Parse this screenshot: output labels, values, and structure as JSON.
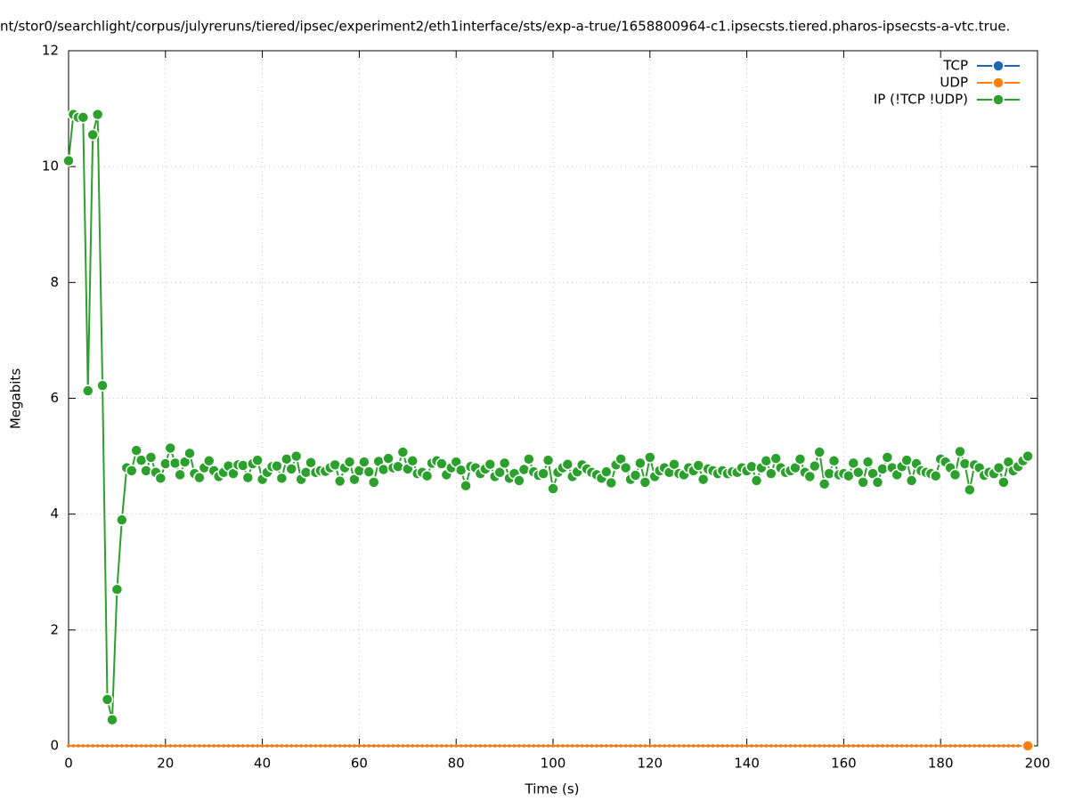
{
  "chart_data": {
    "type": "line",
    "title": "nt/stor0/searchlight/corpus/julyreruns/tiered/ipsec/experiment2/eth1interface/sts/exp-a-true/1658800964-c1.ipsecsts.tiered.pharos-ipsecsts-a-vtc.true.",
    "x_label": "Time (s)",
    "y_label": "Megabits",
    "xlim": [
      0,
      200
    ],
    "xticks": [
      0,
      20,
      40,
      60,
      80,
      100,
      120,
      140,
      160,
      180,
      200
    ],
    "ylim": [
      0,
      12
    ],
    "yticks": [
      0,
      2,
      4,
      6,
      8,
      10,
      12
    ],
    "grid": true,
    "legend": "top-right",
    "x": [
      0,
      1,
      2,
      3,
      4,
      5,
      6,
      7,
      8,
      9,
      10,
      11,
      12,
      13,
      14,
      15,
      16,
      17,
      18,
      19,
      20,
      21,
      22,
      23,
      24,
      25,
      26,
      27,
      28,
      29,
      30,
      31,
      32,
      33,
      34,
      35,
      36,
      37,
      38,
      39,
      40,
      41,
      42,
      43,
      44,
      45,
      46,
      47,
      48,
      49,
      50,
      51,
      52,
      53,
      54,
      55,
      56,
      57,
      58,
      59,
      60,
      61,
      62,
      63,
      64,
      65,
      66,
      67,
      68,
      69,
      70,
      71,
      72,
      73,
      74,
      75,
      76,
      77,
      78,
      79,
      80,
      81,
      82,
      83,
      84,
      85,
      86,
      87,
      88,
      89,
      90,
      91,
      92,
      93,
      94,
      95,
      96,
      97,
      98,
      99,
      100,
      101,
      102,
      103,
      104,
      105,
      106,
      107,
      108,
      109,
      110,
      111,
      112,
      113,
      114,
      115,
      116,
      117,
      118,
      119,
      120,
      121,
      122,
      123,
      124,
      125,
      126,
      127,
      128,
      129,
      130,
      131,
      132,
      133,
      134,
      135,
      136,
      137,
      138,
      139,
      140,
      141,
      142,
      143,
      144,
      145,
      146,
      147,
      148,
      149,
      150,
      151,
      152,
      153,
      154,
      155,
      156,
      157,
      158,
      159,
      160,
      161,
      162,
      163,
      164,
      165,
      166,
      167,
      168,
      169,
      170,
      171,
      172,
      173,
      174,
      175,
      176,
      177,
      178,
      179,
      180,
      181,
      182,
      183,
      184,
      185,
      186,
      187,
      188,
      189,
      190,
      191,
      192,
      193,
      194,
      195,
      196,
      197,
      198
    ],
    "series": [
      {
        "name": "TCP",
        "color": "#1f66b0",
        "values": [
          0,
          0,
          0,
          0,
          0,
          0,
          0,
          0,
          0,
          0,
          0,
          0,
          0,
          0,
          0,
          0,
          0,
          0,
          0,
          0,
          0,
          0,
          0,
          0,
          0,
          0,
          0,
          0,
          0,
          0,
          0,
          0,
          0,
          0,
          0,
          0,
          0,
          0,
          0,
          0,
          0,
          0,
          0,
          0,
          0,
          0,
          0,
          0,
          0,
          0,
          0,
          0,
          0,
          0,
          0,
          0,
          0,
          0,
          0,
          0,
          0,
          0,
          0,
          0,
          0,
          0,
          0,
          0,
          0,
          0,
          0,
          0,
          0,
          0,
          0,
          0,
          0,
          0,
          0,
          0,
          0,
          0,
          0,
          0,
          0,
          0,
          0,
          0,
          0,
          0,
          0,
          0,
          0,
          0,
          0,
          0,
          0,
          0,
          0,
          0,
          0,
          0,
          0,
          0,
          0,
          0,
          0,
          0,
          0,
          0,
          0,
          0,
          0,
          0,
          0,
          0,
          0,
          0,
          0,
          0,
          0,
          0,
          0,
          0,
          0,
          0,
          0,
          0,
          0,
          0,
          0,
          0,
          0,
          0,
          0,
          0,
          0,
          0,
          0,
          0,
          0,
          0,
          0,
          0,
          0,
          0,
          0,
          0,
          0,
          0,
          0,
          0,
          0,
          0,
          0,
          0,
          0,
          0,
          0,
          0,
          0,
          0,
          0,
          0,
          0,
          0,
          0,
          0,
          0,
          0,
          0,
          0,
          0,
          0,
          0,
          0,
          0,
          0,
          0,
          0,
          0,
          0,
          0,
          0,
          0,
          0,
          0,
          0,
          0,
          0,
          0,
          0,
          0,
          0,
          0,
          0,
          0,
          0,
          0
        ]
      },
      {
        "name": "UDP",
        "color": "#ff7f0e",
        "values": [
          0,
          0,
          0,
          0,
          0,
          0,
          0,
          0,
          0,
          0,
          0,
          0,
          0,
          0,
          0,
          0,
          0,
          0,
          0,
          0,
          0,
          0,
          0,
          0,
          0,
          0,
          0,
          0,
          0,
          0,
          0,
          0,
          0,
          0,
          0,
          0,
          0,
          0,
          0,
          0,
          0,
          0,
          0,
          0,
          0,
          0,
          0,
          0,
          0,
          0,
          0,
          0,
          0,
          0,
          0,
          0,
          0,
          0,
          0,
          0,
          0,
          0,
          0,
          0,
          0,
          0,
          0,
          0,
          0,
          0,
          0,
          0,
          0,
          0,
          0,
          0,
          0,
          0,
          0,
          0,
          0,
          0,
          0,
          0,
          0,
          0,
          0,
          0,
          0,
          0,
          0,
          0,
          0,
          0,
          0,
          0,
          0,
          0,
          0,
          0,
          0,
          0,
          0,
          0,
          0,
          0,
          0,
          0,
          0,
          0,
          0,
          0,
          0,
          0,
          0,
          0,
          0,
          0,
          0,
          0,
          0,
          0,
          0,
          0,
          0,
          0,
          0,
          0,
          0,
          0,
          0,
          0,
          0,
          0,
          0,
          0,
          0,
          0,
          0,
          0,
          0,
          0,
          0,
          0,
          0,
          0,
          0,
          0,
          0,
          0,
          0,
          0,
          0,
          0,
          0,
          0,
          0,
          0,
          0,
          0,
          0,
          0,
          0,
          0,
          0,
          0,
          0,
          0,
          0,
          0,
          0,
          0,
          0,
          0,
          0,
          0,
          0,
          0,
          0,
          0,
          0,
          0,
          0,
          0,
          0,
          0,
          0,
          0,
          0,
          0,
          0,
          0,
          0,
          0,
          0,
          0,
          0,
          0,
          0
        ]
      },
      {
        "name": "IP (!TCP  !UDP)",
        "color": "#2ca02c",
        "values": [
          10.1,
          10.9,
          10.85,
          10.85,
          6.13,
          10.55,
          10.9,
          6.22,
          0.8,
          0.45,
          2.7,
          3.9,
          4.8,
          4.75,
          5.1,
          4.93,
          4.75,
          4.98,
          4.72,
          4.62,
          4.87,
          5.14,
          4.88,
          4.68,
          4.9,
          5.05,
          4.7,
          4.63,
          4.8,
          4.92,
          4.75,
          4.65,
          4.72,
          4.83,
          4.7,
          4.85,
          4.84,
          4.63,
          4.87,
          4.93,
          4.6,
          4.72,
          4.82,
          4.83,
          4.62,
          4.95,
          4.78,
          5.0,
          4.6,
          4.72,
          4.89,
          4.72,
          4.75,
          4.74,
          4.8,
          4.85,
          4.57,
          4.8,
          4.9,
          4.6,
          4.75,
          4.9,
          4.73,
          4.55,
          4.91,
          4.77,
          4.96,
          4.8,
          4.82,
          5.07,
          4.78,
          4.92,
          4.7,
          4.72,
          4.66,
          4.88,
          4.92,
          4.87,
          4.68,
          4.8,
          4.9,
          4.76,
          4.49,
          4.82,
          4.8,
          4.7,
          4.78,
          4.86,
          4.65,
          4.72,
          4.88,
          4.62,
          4.7,
          4.58,
          4.77,
          4.95,
          4.73,
          4.67,
          4.7,
          4.93,
          4.44,
          4.72,
          4.8,
          4.86,
          4.65,
          4.73,
          4.85,
          4.78,
          4.72,
          4.68,
          4.62,
          4.73,
          4.54,
          4.85,
          4.95,
          4.8,
          4.6,
          4.67,
          4.88,
          4.55,
          4.98,
          4.65,
          4.75,
          4.8,
          4.72,
          4.86,
          4.7,
          4.68,
          4.8,
          4.75,
          4.84,
          4.6,
          4.78,
          4.75,
          4.7,
          4.75,
          4.7,
          4.73,
          4.72,
          4.8,
          4.75,
          4.82,
          4.58,
          4.8,
          4.92,
          4.7,
          4.96,
          4.8,
          4.72,
          4.75,
          4.8,
          4.95,
          4.72,
          4.65,
          4.83,
          5.07,
          4.52,
          4.7,
          4.92,
          4.68,
          4.7,
          4.66,
          4.88,
          4.72,
          4.55,
          4.9,
          4.7,
          4.55,
          4.78,
          4.98,
          4.8,
          4.68,
          4.82,
          4.93,
          4.58,
          4.87,
          4.75,
          4.72,
          4.7,
          4.66,
          4.95,
          4.9,
          4.8,
          4.68,
          5.08,
          4.87,
          4.42,
          4.85,
          4.8,
          4.67,
          4.72,
          4.7,
          4.8,
          4.55,
          4.9,
          4.75,
          4.82,
          4.92,
          5.0
        ]
      }
    ]
  }
}
